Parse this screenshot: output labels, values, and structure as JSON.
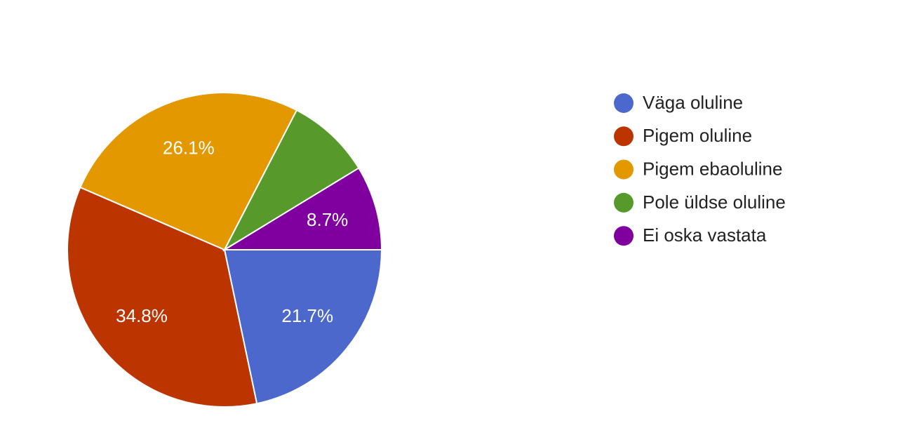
{
  "chart_data": {
    "type": "pie",
    "categories": [
      "Väga oluline",
      "Pigem oluline",
      "Pigem ebaoluline",
      "Pole üldse oluline",
      "Ei oska vastata"
    ],
    "values": [
      21.7,
      34.8,
      26.1,
      8.7,
      8.7
    ],
    "value_labels": [
      "21.7%",
      "34.8%",
      "26.1%",
      null,
      "8.7%"
    ],
    "colors": [
      "#4c68cd",
      "#bc3500",
      "#e39800",
      "#57992a",
      "#7f009e"
    ],
    "legend": "right"
  }
}
